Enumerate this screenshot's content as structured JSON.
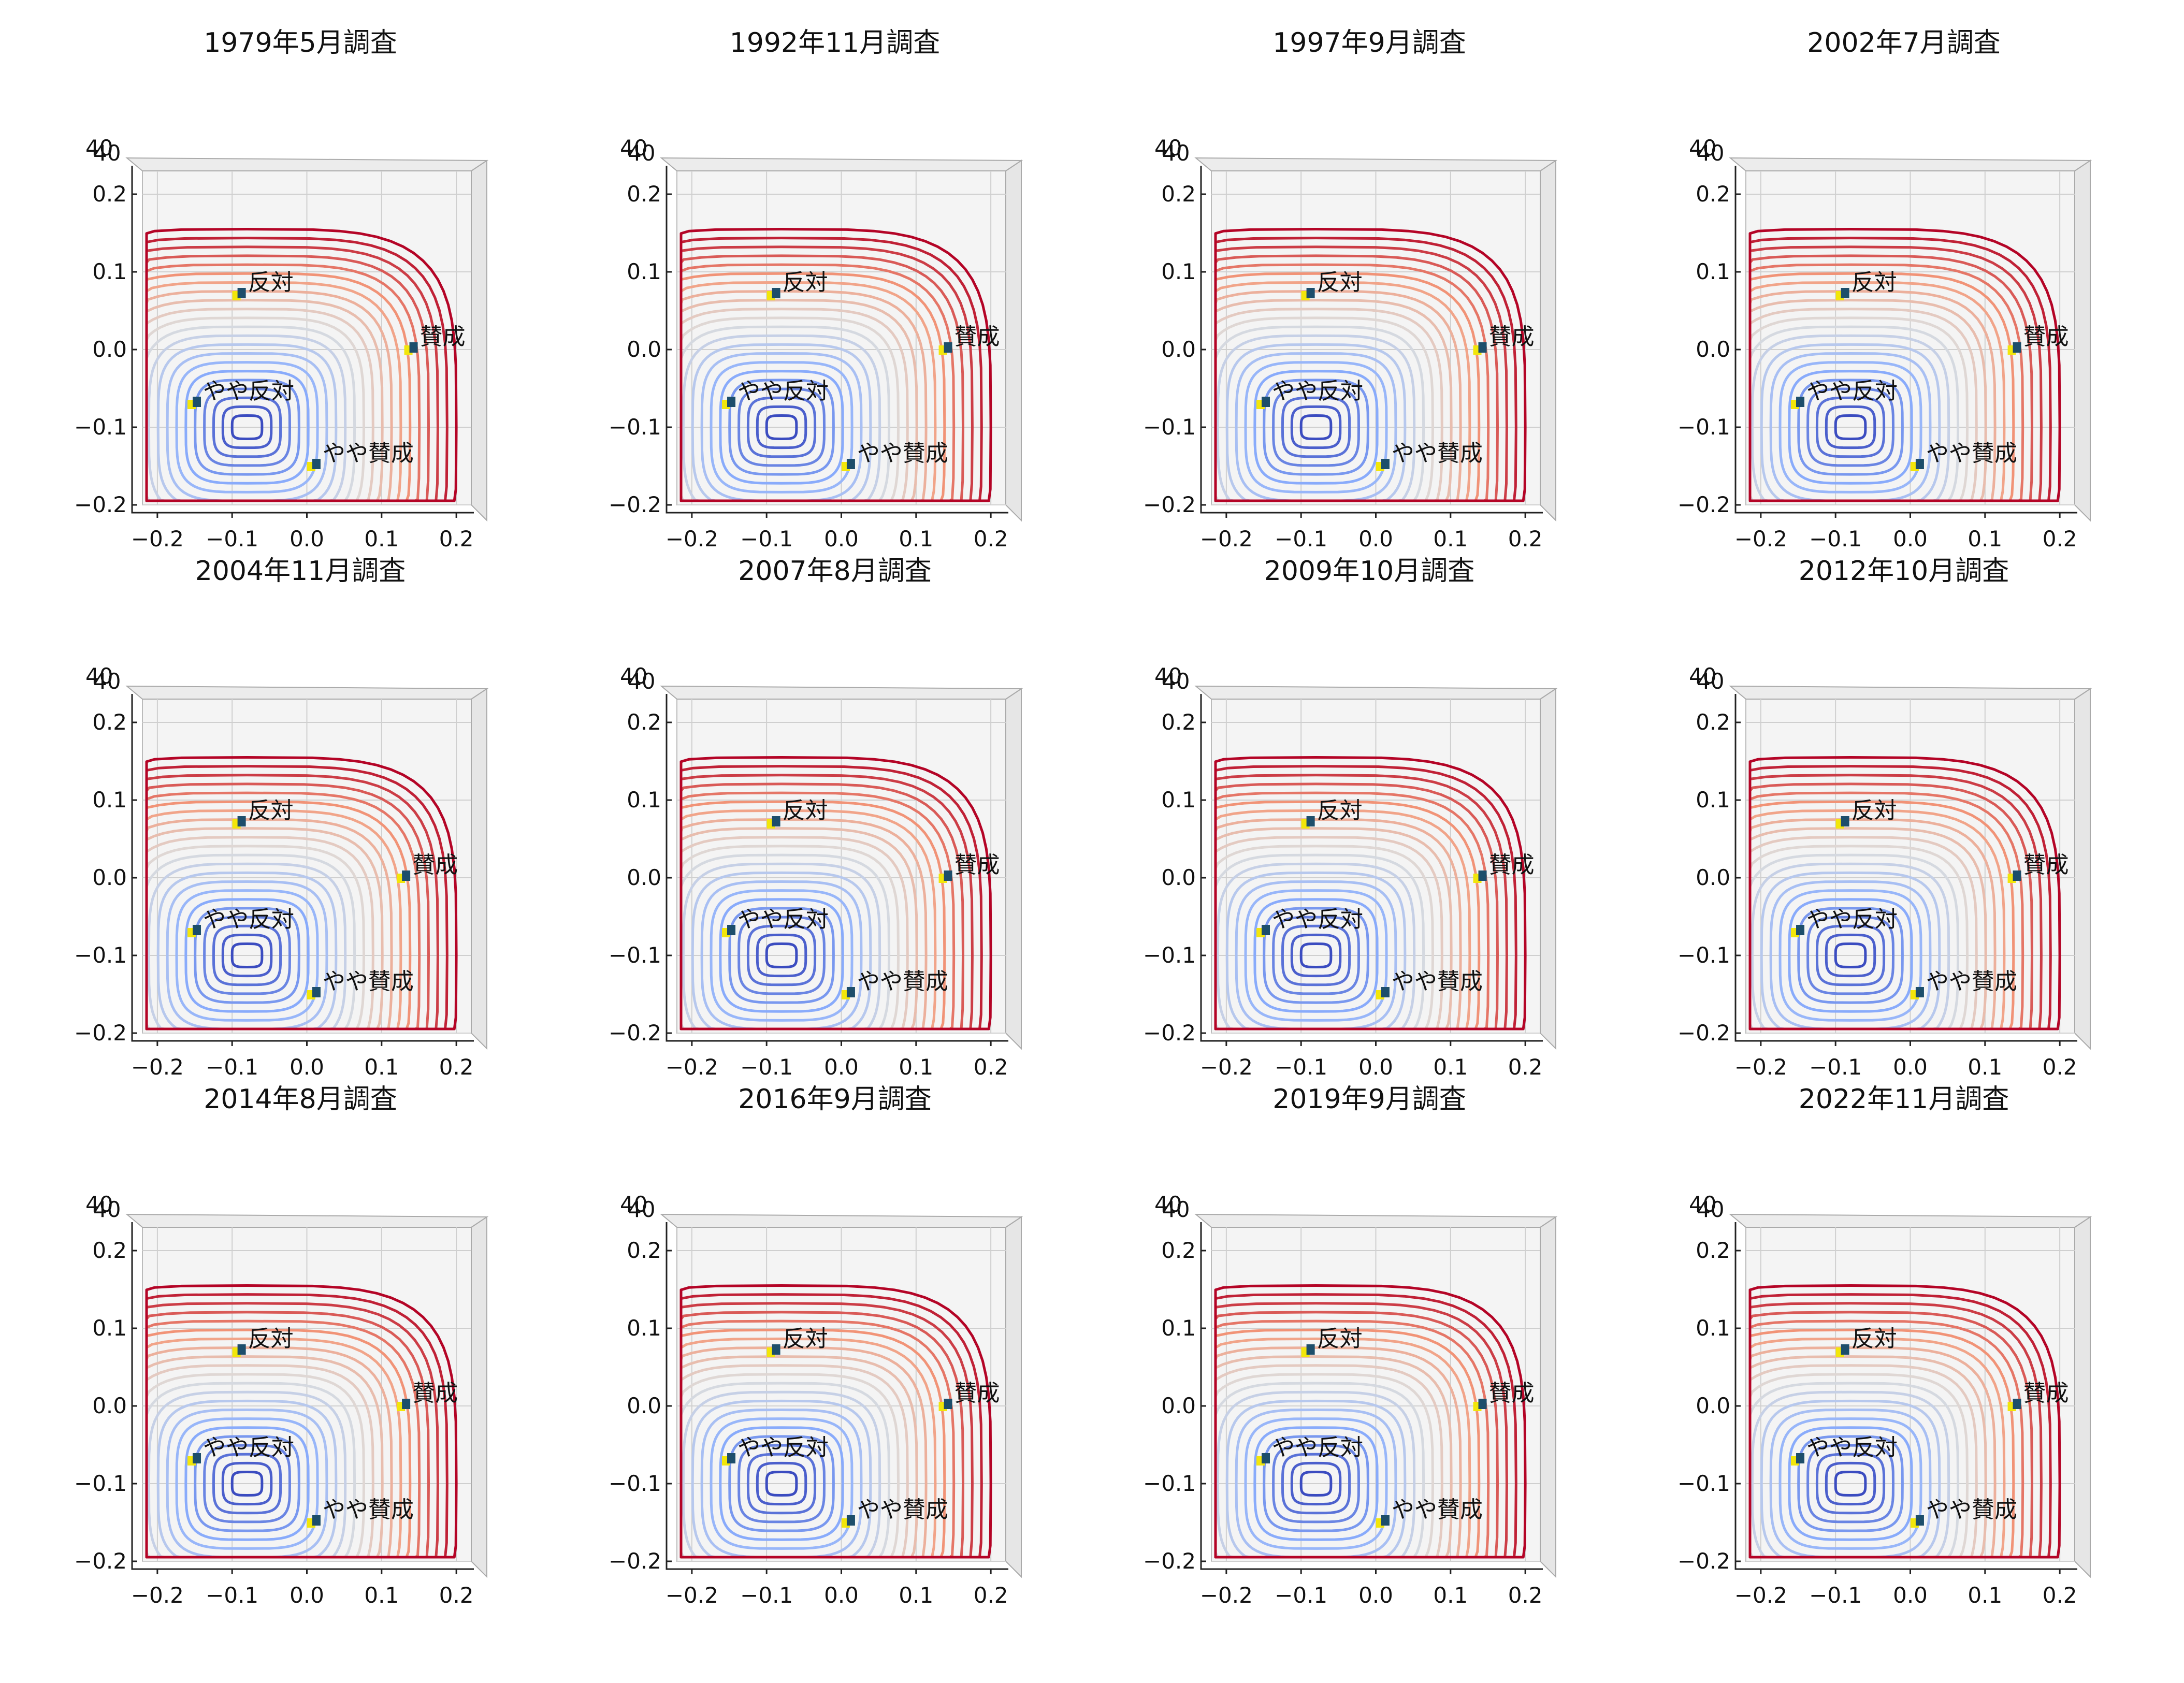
{
  "figure": {
    "layout": "grid",
    "rows": 3,
    "cols": 4
  },
  "chart_data": [
    {
      "type": "contour",
      "title": "1979年5月調査",
      "xlim": [
        -0.22,
        0.22
      ],
      "ylim": [
        -0.2,
        0.23
      ],
      "xticks": [
        -0.2,
        -0.1,
        0.0,
        0.1,
        0.2
      ],
      "yticks": [
        -0.2,
        -0.1,
        0.0,
        0.1,
        0.2
      ],
      "z_tick_label": "40",
      "colormap": "coolwarm",
      "points": [
        {
          "label": "反対",
          "x": -0.09,
          "y": 0.07
        },
        {
          "label": "賛成",
          "x": 0.14,
          "y": 0.0
        },
        {
          "label": "やや反対",
          "x": -0.15,
          "y": -0.07
        },
        {
          "label": "やや賛成",
          "x": 0.01,
          "y": -0.15
        }
      ]
    },
    {
      "type": "contour",
      "title": "1992年11月調査",
      "xlim": [
        -0.22,
        0.22
      ],
      "ylim": [
        -0.2,
        0.23
      ],
      "xticks": [
        -0.2,
        -0.1,
        0.0,
        0.1,
        0.2
      ],
      "yticks": [
        -0.2,
        -0.1,
        0.0,
        0.1,
        0.2
      ],
      "z_tick_label": "40",
      "colormap": "coolwarm",
      "points": [
        {
          "label": "反対",
          "x": -0.09,
          "y": 0.07
        },
        {
          "label": "賛成",
          "x": 0.14,
          "y": 0.0
        },
        {
          "label": "やや反対",
          "x": -0.15,
          "y": -0.07
        },
        {
          "label": "やや賛成",
          "x": 0.01,
          "y": -0.15
        }
      ]
    },
    {
      "type": "contour",
      "title": "1997年9月調査",
      "xlim": [
        -0.22,
        0.22
      ],
      "ylim": [
        -0.2,
        0.23
      ],
      "xticks": [
        -0.2,
        -0.1,
        0.0,
        0.1,
        0.2
      ],
      "yticks": [
        -0.2,
        -0.1,
        0.0,
        0.1,
        0.2
      ],
      "z_tick_label": "40",
      "colormap": "coolwarm",
      "points": [
        {
          "label": "反対",
          "x": -0.09,
          "y": 0.07
        },
        {
          "label": "賛成",
          "x": 0.14,
          "y": 0.0
        },
        {
          "label": "やや反対",
          "x": -0.15,
          "y": -0.07
        },
        {
          "label": "やや賛成",
          "x": 0.01,
          "y": -0.15
        }
      ]
    },
    {
      "type": "contour",
      "title": "2002年7月調査",
      "xlim": [
        -0.22,
        0.22
      ],
      "ylim": [
        -0.2,
        0.23
      ],
      "xticks": [
        -0.2,
        -0.1,
        0.0,
        0.1,
        0.2
      ],
      "yticks": [
        -0.2,
        -0.1,
        0.0,
        0.1,
        0.2
      ],
      "z_tick_label": "40",
      "colormap": "coolwarm",
      "points": [
        {
          "label": "反対",
          "x": -0.09,
          "y": 0.07
        },
        {
          "label": "賛成",
          "x": 0.14,
          "y": 0.0
        },
        {
          "label": "やや反対",
          "x": -0.15,
          "y": -0.07
        },
        {
          "label": "やや賛成",
          "x": 0.01,
          "y": -0.15
        }
      ]
    },
    {
      "type": "contour",
      "title": "2004年11月調査",
      "xlim": [
        -0.22,
        0.22
      ],
      "ylim": [
        -0.2,
        0.23
      ],
      "xticks": [
        -0.2,
        -0.1,
        0.0,
        0.1,
        0.2
      ],
      "yticks": [
        -0.2,
        -0.1,
        0.0,
        0.1,
        0.2
      ],
      "z_tick_label": "40",
      "colormap": "coolwarm",
      "points": [
        {
          "label": "反対",
          "x": -0.09,
          "y": 0.07
        },
        {
          "label": "賛成",
          "x": 0.13,
          "y": 0.0
        },
        {
          "label": "やや反対",
          "x": -0.15,
          "y": -0.07
        },
        {
          "label": "やや賛成",
          "x": 0.01,
          "y": -0.15
        }
      ]
    },
    {
      "type": "contour",
      "title": "2007年8月調査",
      "xlim": [
        -0.22,
        0.22
      ],
      "ylim": [
        -0.2,
        0.23
      ],
      "xticks": [
        -0.2,
        -0.1,
        0.0,
        0.1,
        0.2
      ],
      "yticks": [
        -0.2,
        -0.1,
        0.0,
        0.1,
        0.2
      ],
      "z_tick_label": "40",
      "colormap": "coolwarm",
      "points": [
        {
          "label": "反対",
          "x": -0.09,
          "y": 0.07
        },
        {
          "label": "賛成",
          "x": 0.14,
          "y": 0.0
        },
        {
          "label": "やや反対",
          "x": -0.15,
          "y": -0.07
        },
        {
          "label": "やや賛成",
          "x": 0.01,
          "y": -0.15
        }
      ]
    },
    {
      "type": "contour",
      "title": "2009年10月調査",
      "xlim": [
        -0.22,
        0.22
      ],
      "ylim": [
        -0.2,
        0.23
      ],
      "xticks": [
        -0.2,
        -0.1,
        0.0,
        0.1,
        0.2
      ],
      "yticks": [
        -0.2,
        -0.1,
        0.0,
        0.1,
        0.2
      ],
      "z_tick_label": "40",
      "colormap": "coolwarm",
      "points": [
        {
          "label": "反対",
          "x": -0.09,
          "y": 0.07
        },
        {
          "label": "賛成",
          "x": 0.14,
          "y": 0.0
        },
        {
          "label": "やや反対",
          "x": -0.15,
          "y": -0.07
        },
        {
          "label": "やや賛成",
          "x": 0.01,
          "y": -0.15
        }
      ]
    },
    {
      "type": "contour",
      "title": "2012年10月調査",
      "xlim": [
        -0.22,
        0.22
      ],
      "ylim": [
        -0.2,
        0.23
      ],
      "xticks": [
        -0.2,
        -0.1,
        0.0,
        0.1,
        0.2
      ],
      "yticks": [
        -0.2,
        -0.1,
        0.0,
        0.1,
        0.2
      ],
      "z_tick_label": "40",
      "colormap": "coolwarm",
      "points": [
        {
          "label": "反対",
          "x": -0.09,
          "y": 0.07
        },
        {
          "label": "賛成",
          "x": 0.14,
          "y": 0.0
        },
        {
          "label": "やや反対",
          "x": -0.15,
          "y": -0.07
        },
        {
          "label": "やや賛成",
          "x": 0.01,
          "y": -0.15
        }
      ]
    },
    {
      "type": "contour",
      "title": "2014年8月調査",
      "xlim": [
        -0.22,
        0.22
      ],
      "ylim": [
        -0.2,
        0.23
      ],
      "xticks": [
        -0.2,
        -0.1,
        0.0,
        0.1,
        0.2
      ],
      "yticks": [
        -0.2,
        -0.1,
        0.0,
        0.1,
        0.2
      ],
      "z_tick_label": "40",
      "colormap": "coolwarm",
      "points": [
        {
          "label": "反対",
          "x": -0.09,
          "y": 0.07
        },
        {
          "label": "賛成",
          "x": 0.13,
          "y": 0.0
        },
        {
          "label": "やや反対",
          "x": -0.15,
          "y": -0.07
        },
        {
          "label": "やや賛成",
          "x": 0.01,
          "y": -0.15
        }
      ]
    },
    {
      "type": "contour",
      "title": "2016年9月調査",
      "xlim": [
        -0.22,
        0.22
      ],
      "ylim": [
        -0.2,
        0.23
      ],
      "xticks": [
        -0.2,
        -0.1,
        0.0,
        0.1,
        0.2
      ],
      "yticks": [
        -0.2,
        -0.1,
        0.0,
        0.1,
        0.2
      ],
      "z_tick_label": "40",
      "colormap": "coolwarm",
      "points": [
        {
          "label": "反対",
          "x": -0.09,
          "y": 0.07
        },
        {
          "label": "賛成",
          "x": 0.14,
          "y": 0.0
        },
        {
          "label": "やや反対",
          "x": -0.15,
          "y": -0.07
        },
        {
          "label": "やや賛成",
          "x": 0.01,
          "y": -0.15
        }
      ]
    },
    {
      "type": "contour",
      "title": "2019年9月調査",
      "xlim": [
        -0.22,
        0.22
      ],
      "ylim": [
        -0.2,
        0.23
      ],
      "xticks": [
        -0.2,
        -0.1,
        0.0,
        0.1,
        0.2
      ],
      "yticks": [
        -0.2,
        -0.1,
        0.0,
        0.1,
        0.2
      ],
      "z_tick_label": "40",
      "colormap": "coolwarm",
      "points": [
        {
          "label": "反対",
          "x": -0.09,
          "y": 0.07
        },
        {
          "label": "賛成",
          "x": 0.14,
          "y": 0.0
        },
        {
          "label": "やや反対",
          "x": -0.15,
          "y": -0.07
        },
        {
          "label": "やや賛成",
          "x": 0.01,
          "y": -0.15
        }
      ]
    },
    {
      "type": "contour",
      "title": "2022年11月調査",
      "xlim": [
        -0.22,
        0.22
      ],
      "ylim": [
        -0.2,
        0.23
      ],
      "xticks": [
        -0.2,
        -0.1,
        0.0,
        0.1,
        0.2
      ],
      "yticks": [
        -0.2,
        -0.1,
        0.0,
        0.1,
        0.2
      ],
      "z_tick_label": "40",
      "colormap": "coolwarm",
      "points": [
        {
          "label": "反対",
          "x": -0.09,
          "y": 0.07
        },
        {
          "label": "賛成",
          "x": 0.14,
          "y": 0.0
        },
        {
          "label": "やや反対",
          "x": -0.15,
          "y": -0.07
        },
        {
          "label": "やや賛成",
          "x": 0.01,
          "y": -0.15
        }
      ]
    }
  ]
}
